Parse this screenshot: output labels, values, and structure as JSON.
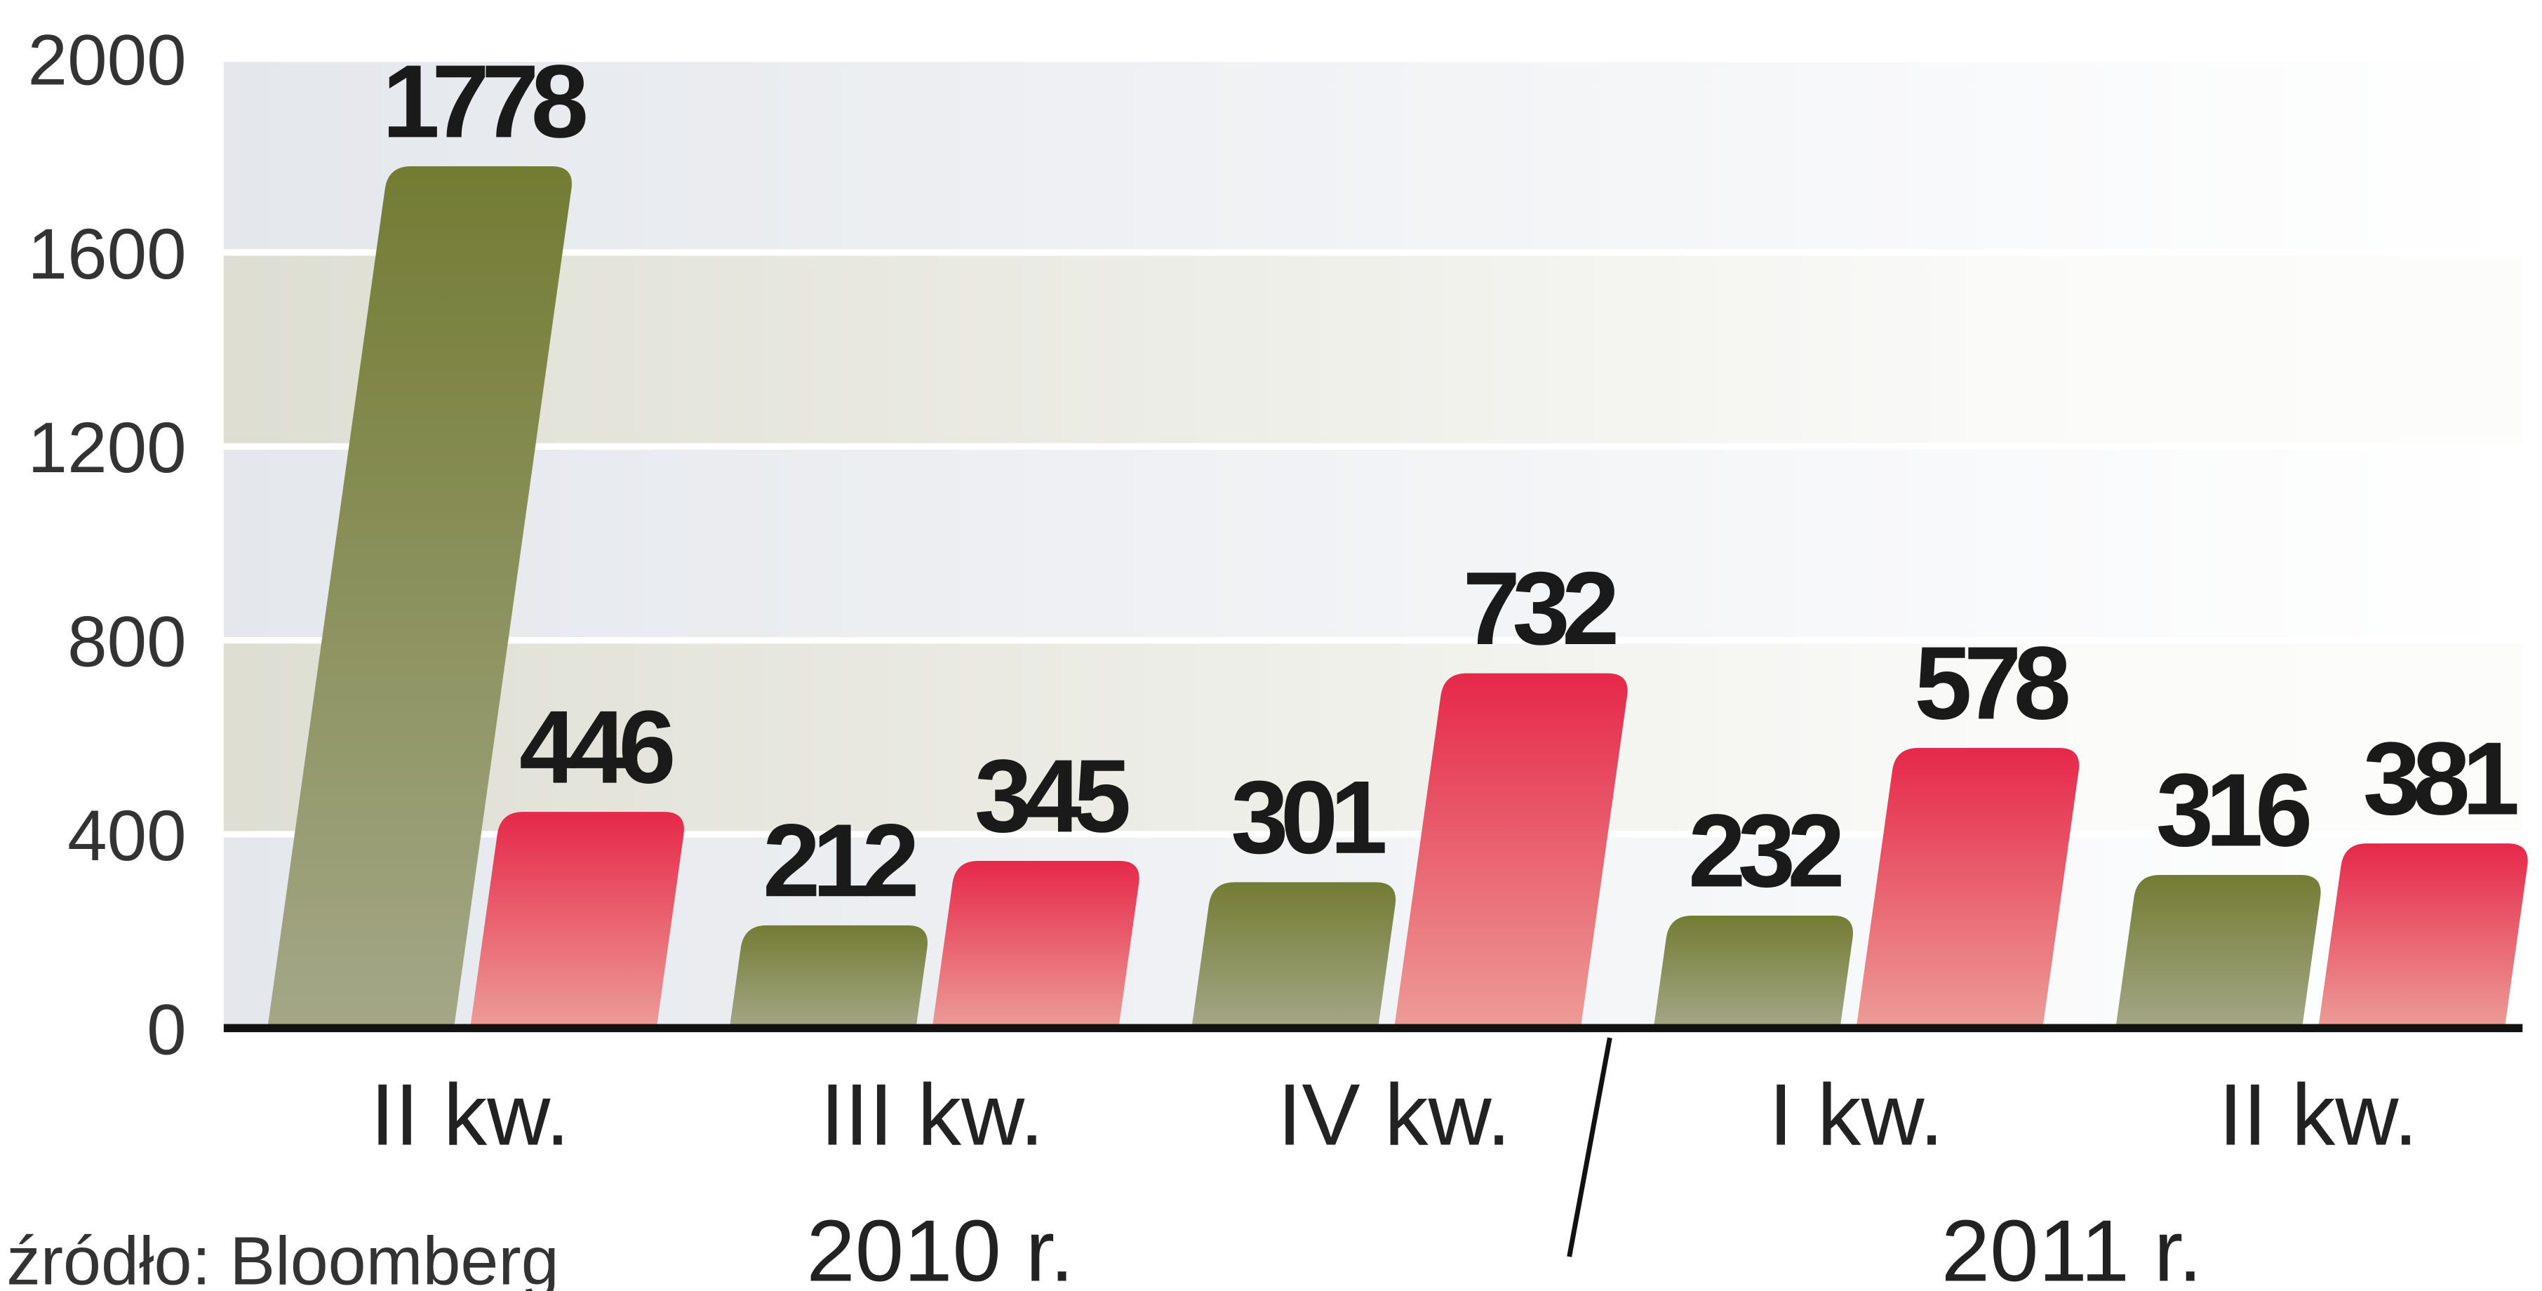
{
  "chart_data": {
    "type": "bar",
    "categories": [
      "II kw.",
      "III kw.",
      "IV kw.",
      "I kw.",
      "II kw."
    ],
    "series": [
      {
        "color": "#6f7a2f",
        "values": [
          1778,
          212,
          301,
          232,
          316
        ]
      },
      {
        "color": "#e62a4a",
        "values": [
          446,
          345,
          732,
          578,
          381
        ]
      }
    ],
    "ylim": [
      0,
      2000
    ],
    "yticks": [
      0,
      400,
      800,
      1200,
      1600,
      2000
    ],
    "grid": true,
    "year_labels": [
      "2010 r.",
      "2011 r."
    ],
    "source": "źródło: Bloomberg"
  }
}
